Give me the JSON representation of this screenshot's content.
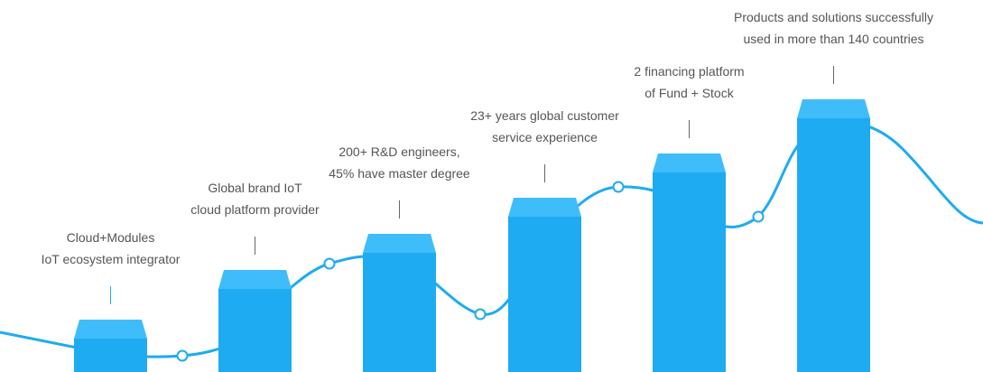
{
  "colors": {
    "bar": "#1eabf1",
    "cap": "#3fbdfb",
    "line": "#1eabf1",
    "text": "#555555"
  },
  "milestones": [
    {
      "line1": "Cloud+Modules",
      "line2": "IoT ecosystem integrator"
    },
    {
      "line1": "Global brand IoT",
      "line2": "cloud platform provider"
    },
    {
      "line1": "200+ R&D engineers,",
      "line2": "45% have master degree"
    },
    {
      "line1": "23+ years global customer",
      "line2": "service experience"
    },
    {
      "line1": "2 financing platform",
      "line2": "of Fund + Stock"
    },
    {
      "line1": "Products and solutions successfully",
      "line2": "used in more than 140 countries"
    }
  ]
}
